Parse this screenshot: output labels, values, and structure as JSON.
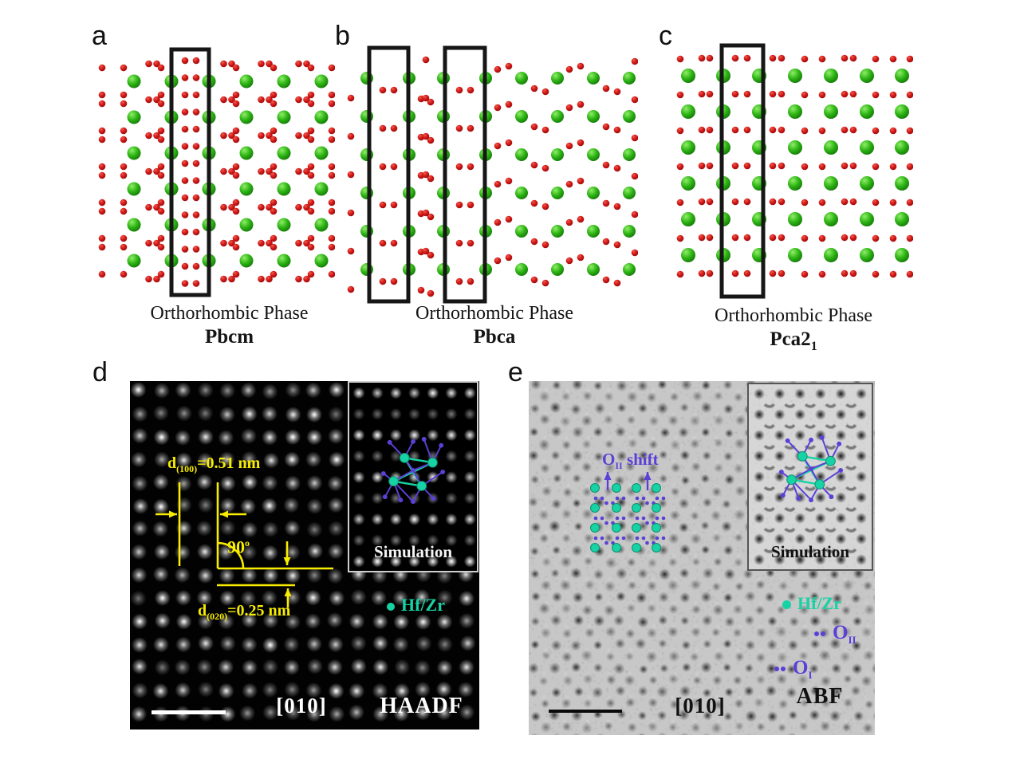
{
  "figure": {
    "colors": {
      "green_atom": "#2db414",
      "red_atom": "#cf1616",
      "box_outline": "#161616",
      "yellow_annotation": "#f8ec00",
      "teal": "#17d2a4",
      "purple": "#5b3fd6",
      "haadf_text": "#ffffff",
      "abf_text": "#111111"
    },
    "panels": {
      "a": {
        "letter": "a",
        "caption_phase": "Orthorhombic Phase",
        "caption_group": "Pbcm"
      },
      "b": {
        "letter": "b",
        "caption_phase": "Orthorhombic Phase",
        "caption_group": "Pbca"
      },
      "c": {
        "letter": "c",
        "caption_phase": "Orthorhombic Phase",
        "caption_group_base": "Pca2",
        "caption_group_sub": "1"
      },
      "d": {
        "letter": "d",
        "zone_axis": "[010]",
        "mode_label": "HAADF",
        "inset_label": "Simulation",
        "legend_hfzr": "Hf/Zr",
        "annotations": {
          "d100_sym": "d",
          "d100_sub": "(100)",
          "d100_val": "=0.51 nm",
          "angle_val": "90",
          "angle_sup": "o",
          "d020_sym": "d",
          "d020_sub": "(020)",
          "d020_val": "=0.25 nm"
        }
      },
      "e": {
        "letter": "e",
        "zone_axis": "[010]",
        "mode_label": "ABF",
        "inset_label": "Simulation",
        "shift_sym": "O",
        "shift_sub": "II",
        "shift_word": " shift",
        "legend_hfzr": "Hf/Zr",
        "legend_o2_sym": "O",
        "legend_o2_sub": "II",
        "legend_o1_sym": "O",
        "legend_o1_sub": "I"
      }
    }
  }
}
